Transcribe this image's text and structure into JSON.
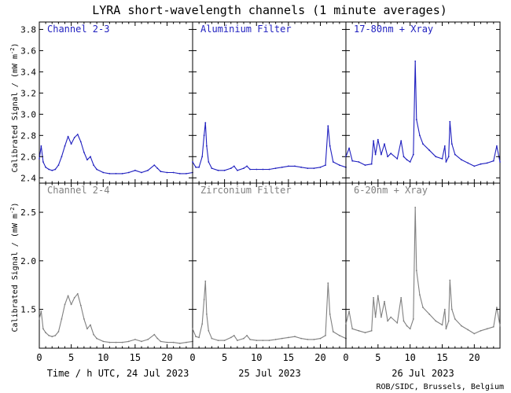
{
  "chart_data": {
    "type": "line",
    "title": "LYRA short-wavelength channels (1 minute averages)",
    "ylabel": "Calibrated Signal / (mW m",
    "ylabel_sup": "-2",
    "ylabel_close": ")",
    "xlabel_prefix": "Time / h UTC, 24 Jul 2023",
    "day_labels": [
      "25 Jul 2023",
      "26 Jul 2023"
    ],
    "credit": "ROB/SIDC, Brussels, Belgium",
    "x_ticks": [
      "0",
      "5",
      "10",
      "15",
      "20"
    ],
    "xlim": [
      0,
      24
    ],
    "rows": [
      {
        "ylim": [
          2.35,
          3.87
        ],
        "y_ticks": [
          "2.4",
          "2.6",
          "2.8",
          "3.0",
          "3.2",
          "3.4",
          "3.6",
          "3.8"
        ],
        "y_tick_values": [
          2.4,
          2.6,
          2.8,
          3.0,
          3.2,
          3.4,
          3.6,
          3.8
        ],
        "color": "#1f1fbf",
        "panels": [
          {
            "name": "Channel 2-3",
            "x": [
              0,
              0.3,
              0.6,
              1,
              1.5,
              2,
              2.5,
              3,
              3.5,
              4,
              4.5,
              5,
              5.5,
              6,
              6.5,
              7,
              7.5,
              8,
              8.5,
              9,
              10,
              11,
              12,
              13,
              14,
              15,
              16,
              17,
              18,
              18.5,
              19,
              20,
              21,
              22,
              23,
              24
            ],
            "y": [
              2.58,
              2.7,
              2.55,
              2.5,
              2.48,
              2.47,
              2.48,
              2.52,
              2.6,
              2.7,
              2.79,
              2.72,
              2.78,
              2.81,
              2.74,
              2.64,
              2.57,
              2.6,
              2.52,
              2.48,
              2.45,
              2.44,
              2.44,
              2.44,
              2.45,
              2.47,
              2.45,
              2.47,
              2.52,
              2.49,
              2.46,
              2.45,
              2.45,
              2.44,
              2.44,
              2.45
            ]
          },
          {
            "name": "Aluminium Filter",
            "x": [
              0,
              0.5,
              1,
              1.5,
              1.8,
              2,
              2.2,
              2.5,
              3,
              4,
              5,
              6,
              6.5,
              7,
              8,
              8.5,
              9,
              10,
              11,
              12,
              13,
              14,
              15,
              16,
              17,
              18,
              19,
              20,
              20.8,
              21.2,
              21.5,
              22,
              23,
              24
            ],
            "y": [
              2.55,
              2.5,
              2.5,
              2.6,
              2.8,
              2.92,
              2.7,
              2.55,
              2.49,
              2.47,
              2.47,
              2.49,
              2.51,
              2.47,
              2.49,
              2.51,
              2.48,
              2.48,
              2.48,
              2.48,
              2.49,
              2.5,
              2.51,
              2.51,
              2.5,
              2.49,
              2.49,
              2.5,
              2.52,
              2.89,
              2.7,
              2.55,
              2.52,
              2.5
            ]
          },
          {
            "name": "17-80nm + Xray",
            "x": [
              0,
              0.5,
              1,
              2,
              3,
              4,
              4.3,
              4.6,
              5,
              5.5,
              6,
              6.5,
              7,
              8,
              8.6,
              9,
              9.5,
              10,
              10.5,
              10.8,
              11,
              11.5,
              12,
              13,
              14,
              15,
              15.4,
              15.6,
              16,
              16.2,
              16.5,
              17,
              18,
              19,
              20,
              21,
              22,
              23,
              23.5,
              24
            ],
            "y": [
              2.6,
              2.68,
              2.56,
              2.55,
              2.52,
              2.53,
              2.75,
              2.62,
              2.76,
              2.62,
              2.72,
              2.6,
              2.63,
              2.58,
              2.75,
              2.6,
              2.57,
              2.55,
              2.62,
              3.5,
              2.95,
              2.8,
              2.72,
              2.66,
              2.6,
              2.58,
              2.7,
              2.55,
              2.6,
              2.93,
              2.72,
              2.62,
              2.57,
              2.54,
              2.51,
              2.53,
              2.54,
              2.56,
              2.7,
              2.55
            ]
          }
        ]
      },
      {
        "ylim": [
          1.1,
          2.8
        ],
        "y_ticks": [
          "1.5",
          "2.0",
          "2.5"
        ],
        "y_tick_values": [
          1.5,
          2.0,
          2.5
        ],
        "color": "#808080",
        "panels": [
          {
            "name": "Channel 2-4",
            "x": [
              0,
              0.3,
              0.6,
              1,
              1.5,
              2,
              2.5,
              3,
              3.5,
              4,
              4.5,
              5,
              5.5,
              6,
              6.5,
              7,
              7.5,
              8,
              8.5,
              9,
              10,
              11,
              12,
              13,
              14,
              15,
              16,
              17,
              18,
              18.5,
              19,
              20,
              21,
              22,
              23,
              24
            ],
            "y": [
              1.4,
              1.48,
              1.3,
              1.26,
              1.23,
              1.22,
              1.23,
              1.27,
              1.4,
              1.55,
              1.64,
              1.55,
              1.62,
              1.66,
              1.54,
              1.4,
              1.3,
              1.34,
              1.24,
              1.2,
              1.17,
              1.16,
              1.16,
              1.16,
              1.17,
              1.19,
              1.17,
              1.19,
              1.24,
              1.2,
              1.17,
              1.16,
              1.16,
              1.15,
              1.16,
              1.17
            ]
          },
          {
            "name": "Zirconium Filter",
            "x": [
              0,
              0.5,
              1,
              1.5,
              1.8,
              2,
              2.2,
              2.5,
              3,
              4,
              5,
              6,
              6.5,
              7,
              8,
              8.5,
              9,
              10,
              11,
              12,
              13,
              14,
              15,
              16,
              17,
              18,
              19,
              20,
              20.8,
              21.2,
              21.5,
              22,
              23,
              24
            ],
            "y": [
              1.3,
              1.22,
              1.21,
              1.35,
              1.6,
              1.79,
              1.45,
              1.28,
              1.2,
              1.18,
              1.18,
              1.21,
              1.23,
              1.18,
              1.2,
              1.23,
              1.19,
              1.18,
              1.18,
              1.18,
              1.19,
              1.2,
              1.21,
              1.22,
              1.2,
              1.19,
              1.19,
              1.2,
              1.23,
              1.77,
              1.45,
              1.27,
              1.23,
              1.2
            ]
          },
          {
            "name": "6-20nm + Xray",
            "x": [
              0,
              0.5,
              1,
              2,
              3,
              4,
              4.3,
              4.6,
              5,
              5.5,
              6,
              6.5,
              7,
              8,
              8.6,
              9,
              9.5,
              10,
              10.5,
              10.8,
              11,
              11.5,
              12,
              13,
              14,
              15,
              15.4,
              15.6,
              16,
              16.2,
              16.5,
              17,
              18,
              19,
              20,
              21,
              22,
              23,
              23.5,
              24
            ],
            "y": [
              1.35,
              1.48,
              1.3,
              1.28,
              1.26,
              1.28,
              1.62,
              1.42,
              1.64,
              1.42,
              1.58,
              1.38,
              1.42,
              1.36,
              1.62,
              1.38,
              1.33,
              1.3,
              1.4,
              2.55,
              1.9,
              1.65,
              1.52,
              1.45,
              1.38,
              1.34,
              1.5,
              1.3,
              1.38,
              1.8,
              1.5,
              1.4,
              1.33,
              1.29,
              1.25,
              1.28,
              1.3,
              1.32,
              1.52,
              1.33
            ]
          }
        ]
      }
    ]
  }
}
